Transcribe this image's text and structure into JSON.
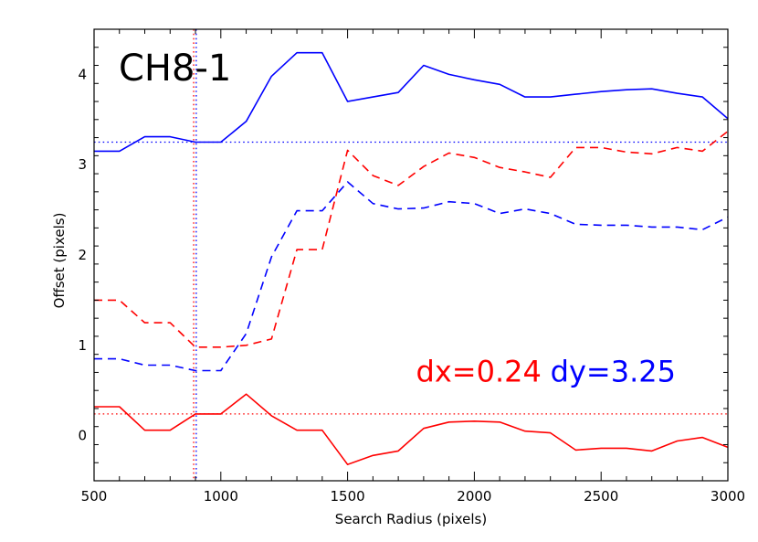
{
  "chart_data": {
    "type": "line",
    "title": "CH8-1",
    "xlabel": "Search Radius (pixels)",
    "ylabel": "Offset (pixels)",
    "xlim": [
      500,
      3000
    ],
    "ylim": [
      -0.5,
      4.5
    ],
    "xticks": [
      500,
      1000,
      1500,
      2000,
      2500,
      3000
    ],
    "yticks": [
      0,
      1,
      2,
      3,
      4
    ],
    "grid": false,
    "series": [
      {
        "key": "dy-solid",
        "color": "#0000ff",
        "style": "solid",
        "points": [
          [
            500,
            3.15
          ],
          [
            600,
            3.15
          ],
          [
            700,
            3.31
          ],
          [
            800,
            3.31
          ],
          [
            900,
            3.25
          ],
          [
            1000,
            3.25
          ],
          [
            1100,
            3.48
          ],
          [
            1200,
            3.98
          ],
          [
            1300,
            4.24
          ],
          [
            1400,
            4.24
          ],
          [
            1500,
            3.7
          ],
          [
            1600,
            3.75
          ],
          [
            1700,
            3.8
          ],
          [
            1800,
            4.1
          ],
          [
            1900,
            4.0
          ],
          [
            2000,
            3.94
          ],
          [
            2100,
            3.89
          ],
          [
            2200,
            3.75
          ],
          [
            2300,
            3.75
          ],
          [
            2400,
            3.78
          ],
          [
            2500,
            3.81
          ],
          [
            2600,
            3.83
          ],
          [
            2700,
            3.84
          ],
          [
            2800,
            3.79
          ],
          [
            2900,
            3.75
          ],
          [
            3000,
            3.51
          ]
        ]
      },
      {
        "key": "dx-dashed",
        "color": "#ff0000",
        "style": "dashed",
        "points": [
          [
            500,
            1.5
          ],
          [
            600,
            1.5
          ],
          [
            700,
            1.25
          ],
          [
            800,
            1.25
          ],
          [
            900,
            0.98
          ],
          [
            1000,
            0.98
          ],
          [
            1100,
            1.0
          ],
          [
            1200,
            1.07
          ],
          [
            1300,
            2.06
          ],
          [
            1400,
            2.06
          ],
          [
            1500,
            3.16
          ],
          [
            1600,
            2.88
          ],
          [
            1700,
            2.77
          ],
          [
            1800,
            2.98
          ],
          [
            1900,
            3.13
          ],
          [
            2000,
            3.08
          ],
          [
            2100,
            2.97
          ],
          [
            2200,
            2.92
          ],
          [
            2300,
            2.86
          ],
          [
            2400,
            3.19
          ],
          [
            2500,
            3.19
          ],
          [
            2600,
            3.14
          ],
          [
            2700,
            3.12
          ],
          [
            2800,
            3.19
          ],
          [
            2900,
            3.15
          ],
          [
            3000,
            3.37
          ]
        ]
      },
      {
        "key": "dy-dashed",
        "color": "#0000ff",
        "style": "dashed",
        "points": [
          [
            500,
            0.85
          ],
          [
            600,
            0.85
          ],
          [
            700,
            0.78
          ],
          [
            800,
            0.78
          ],
          [
            900,
            0.72
          ],
          [
            1000,
            0.72
          ],
          [
            1100,
            1.13
          ],
          [
            1200,
            1.98
          ],
          [
            1300,
            2.49
          ],
          [
            1400,
            2.49
          ],
          [
            1500,
            2.81
          ],
          [
            1600,
            2.57
          ],
          [
            1700,
            2.51
          ],
          [
            1800,
            2.52
          ],
          [
            1900,
            2.59
          ],
          [
            2000,
            2.57
          ],
          [
            2100,
            2.46
          ],
          [
            2200,
            2.51
          ],
          [
            2300,
            2.46
          ],
          [
            2400,
            2.34
          ],
          [
            2500,
            2.33
          ],
          [
            2600,
            2.33
          ],
          [
            2700,
            2.31
          ],
          [
            2800,
            2.31
          ],
          [
            2900,
            2.28
          ],
          [
            3000,
            2.42
          ]
        ]
      },
      {
        "key": "dx-solid",
        "color": "#ff0000",
        "style": "solid",
        "points": [
          [
            500,
            0.32
          ],
          [
            600,
            0.32
          ],
          [
            700,
            0.06
          ],
          [
            800,
            0.06
          ],
          [
            900,
            0.24
          ],
          [
            1000,
            0.24
          ],
          [
            1100,
            0.46
          ],
          [
            1200,
            0.22
          ],
          [
            1300,
            0.06
          ],
          [
            1400,
            0.06
          ],
          [
            1500,
            -0.32
          ],
          [
            1600,
            -0.22
          ],
          [
            1700,
            -0.17
          ],
          [
            1800,
            0.08
          ],
          [
            1900,
            0.15
          ],
          [
            2000,
            0.16
          ],
          [
            2100,
            0.15
          ],
          [
            2200,
            0.05
          ],
          [
            2300,
            0.03
          ],
          [
            2400,
            -0.16
          ],
          [
            2500,
            -0.14
          ],
          [
            2600,
            -0.14
          ],
          [
            2700,
            -0.17
          ],
          [
            2800,
            -0.06
          ],
          [
            2900,
            -0.02
          ],
          [
            3000,
            -0.13
          ]
        ]
      }
    ],
    "reference_lines": [
      {
        "key": "dy-ref",
        "orientation": "horizontal",
        "value": 3.25,
        "color": "#0000ff",
        "style": "dotted"
      },
      {
        "key": "dx-ref",
        "orientation": "horizontal",
        "value": 0.24,
        "color": "#ff0000",
        "style": "dotted"
      },
      {
        "key": "radius-ref-red",
        "orientation": "vertical",
        "value": 893,
        "color": "#ff0000",
        "style": "dotted"
      },
      {
        "key": "radius-ref-blue",
        "orientation": "vertical",
        "value": 903,
        "color": "#0000ff",
        "style": "dotted"
      }
    ],
    "annotations": [
      {
        "key": "dx-label",
        "text": "dx=0.24",
        "color": "#ff0000",
        "x": 1770,
        "y": 0.6
      },
      {
        "key": "dy-label",
        "text": "dy=3.25",
        "color": "#0000ff",
        "x": 2300,
        "y": 0.6
      }
    ]
  }
}
